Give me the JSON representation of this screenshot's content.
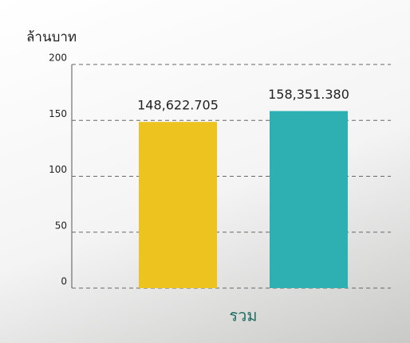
{
  "chart_data": {
    "type": "bar",
    "y_label": "ล้านบาท",
    "categories": [
      "รวม"
    ],
    "series": [
      {
        "color": "#ecc31f",
        "values": [
          148.622705
        ],
        "value_labels": [
          "148,622.705"
        ]
      },
      {
        "color": "#2eb0b3",
        "values": [
          158.35138
        ],
        "value_labels": [
          "158,351.380"
        ]
      }
    ],
    "ylim": [
      0,
      200
    ],
    "yticks": [
      0,
      50,
      100,
      150,
      200
    ],
    "grid": true
  }
}
